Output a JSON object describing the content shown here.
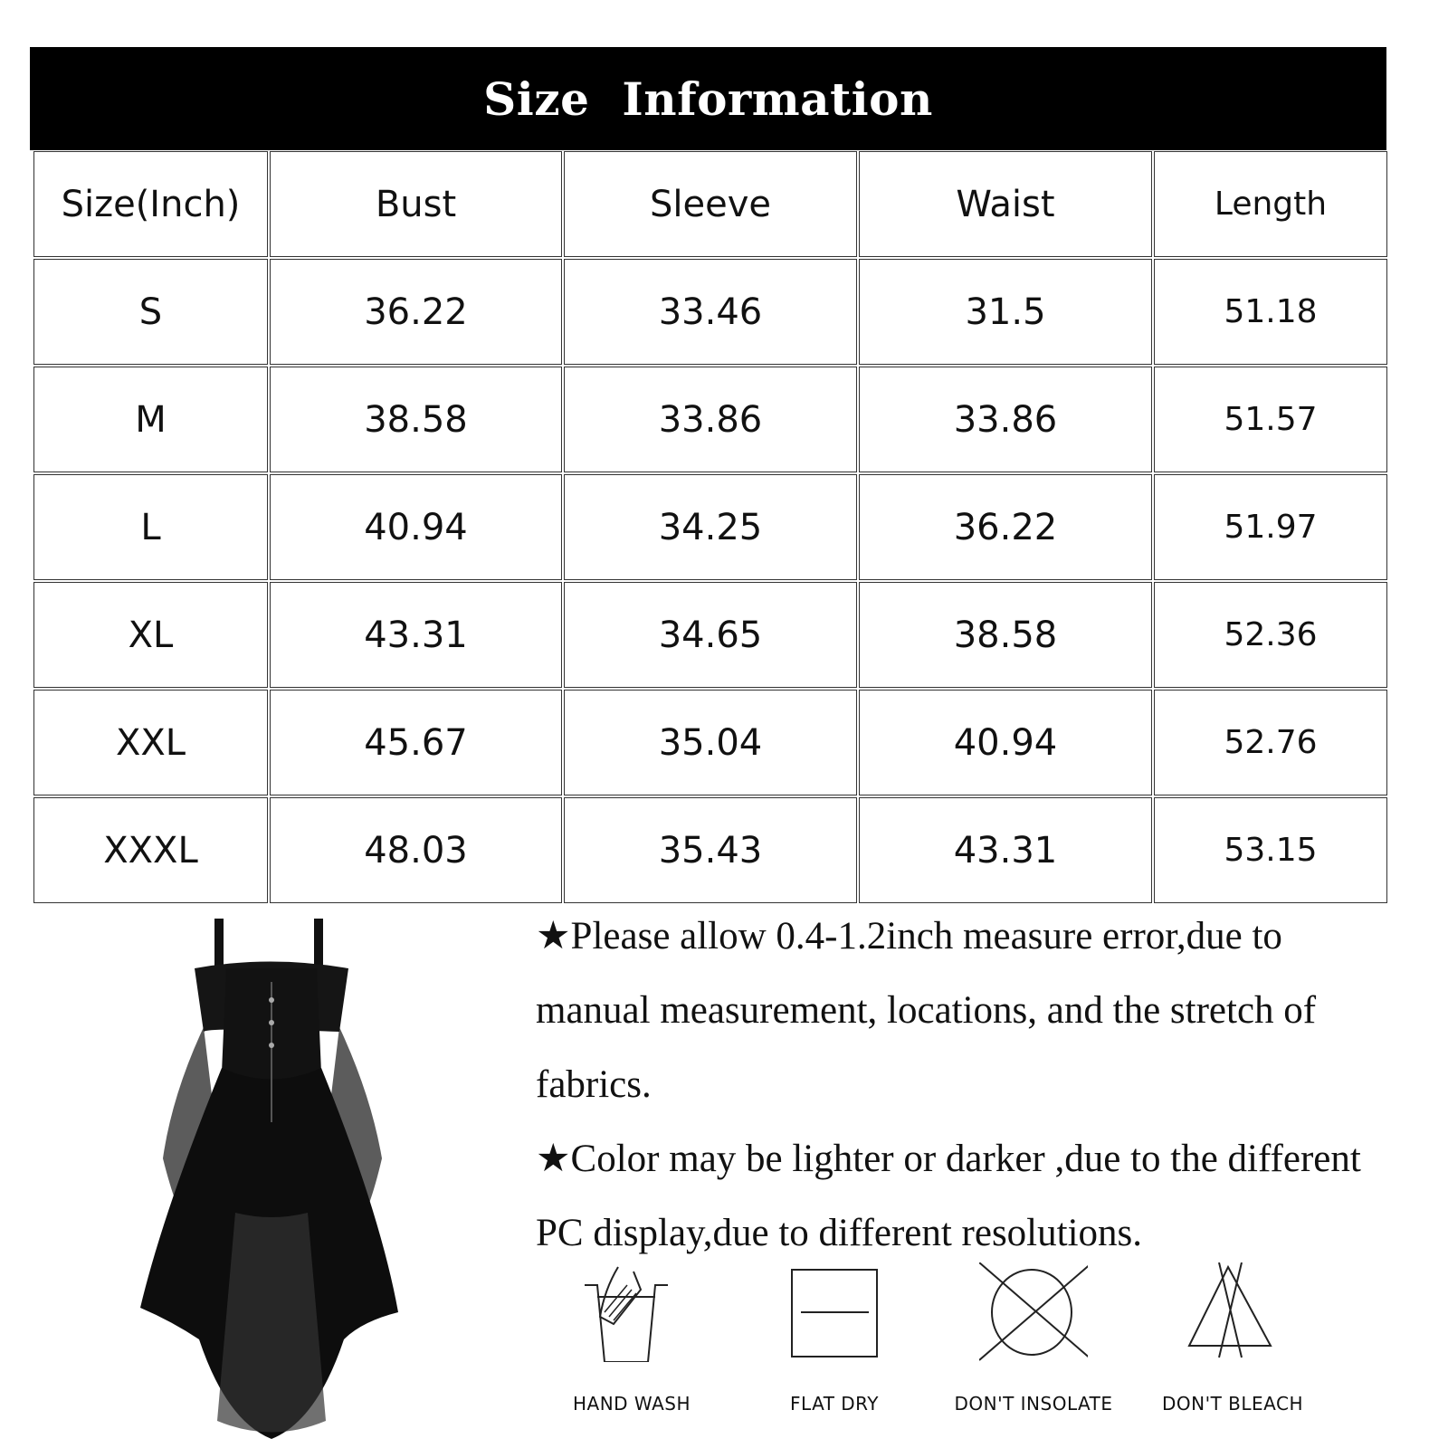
{
  "title": "Size Information",
  "table": {
    "headers": [
      "Size(Inch)",
      "Bust",
      "Sleeve",
      "Waist",
      "Length"
    ],
    "rows": [
      [
        "S",
        "36.22",
        "33.46",
        "31.5",
        "51.18"
      ],
      [
        "M",
        "38.58",
        "33.86",
        "33.86",
        "51.57"
      ],
      [
        "L",
        "40.94",
        "34.25",
        "36.22",
        "51.97"
      ],
      [
        "XL",
        "43.31",
        "34.65",
        "38.58",
        "52.36"
      ],
      [
        "XXL",
        "45.67",
        "35.04",
        "40.94",
        "52.76"
      ],
      [
        "XXXL",
        "48.03",
        "35.43",
        "43.31",
        "53.15"
      ]
    ]
  },
  "notes": [
    "★Please allow 0.4-1.2inch measure error,due to manual measurement, locations, and the stretch of fabrics.",
    "★Color may be lighter or darker ,due to the different PC display,due to different resolutions."
  ],
  "care": [
    {
      "icon": "hand-wash-icon",
      "label": "HAND WASH"
    },
    {
      "icon": "flat-dry-icon",
      "label": "FLAT  DRY"
    },
    {
      "icon": "dont-insolate-icon",
      "label": "DON'T INSOLATE"
    },
    {
      "icon": "dont-bleach-icon",
      "label": "DON'T BLEACH"
    }
  ]
}
